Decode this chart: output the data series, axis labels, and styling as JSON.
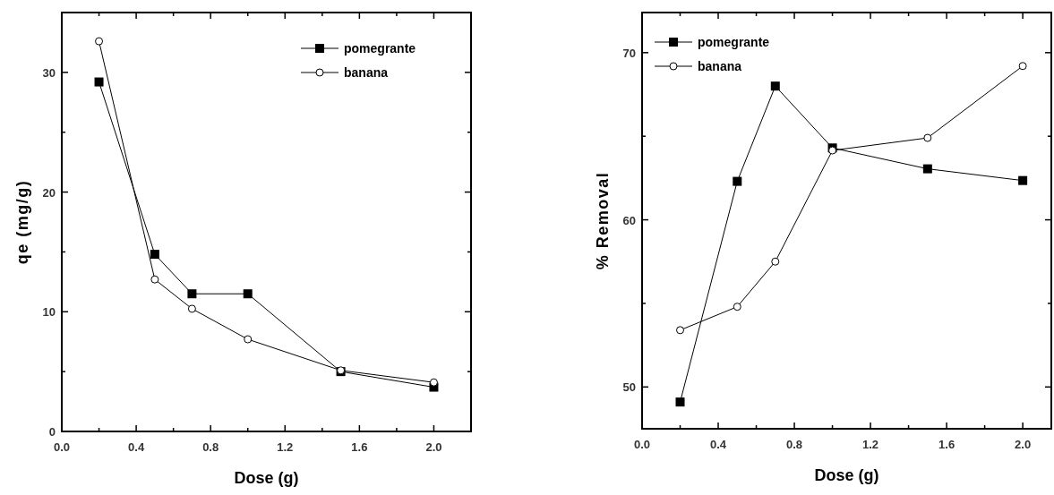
{
  "chart_data": [
    {
      "type": "line",
      "xlabel": "Dose (g)",
      "ylabel": "qe (mg/g)",
      "x": [
        0.2,
        0.5,
        0.7,
        1.0,
        1.5,
        2.0
      ],
      "xlim": [
        0,
        2.2
      ],
      "ylim": [
        0,
        35
      ],
      "xticks": [
        {
          "value": 0,
          "label": "0.0"
        },
        {
          "value": 0.2,
          "label": null
        },
        0.4,
        {
          "value": 0.6,
          "label": null
        },
        0.8,
        {
          "value": 1.0,
          "label": null
        },
        1.2,
        {
          "value": 1.4,
          "label": null
        },
        1.6,
        {
          "value": 1.8,
          "label": null
        },
        {
          "value": 2,
          "label": "2.0"
        }
      ],
      "yticks": [
        0,
        {
          "value": 5,
          "label": null
        },
        10,
        {
          "value": 15,
          "label": null
        },
        20,
        {
          "value": 25,
          "label": null
        },
        30
      ],
      "legend": "top right",
      "series": [
        {
          "name": "pomegrante",
          "color": "#000000",
          "marker": "square",
          "values": [
            29.2,
            14.8,
            11.5,
            11.5,
            5.0,
            3.7
          ]
        },
        {
          "name": "banana",
          "color": "#000000",
          "marker": "circle",
          "values": [
            32.6,
            12.7,
            10.25,
            7.7,
            5.1,
            4.1
          ]
        }
      ]
    },
    {
      "type": "line",
      "xlabel": "Dose (g)",
      "ylabel": "% Removal",
      "x": [
        0.2,
        0.5,
        0.7,
        1.0,
        1.5,
        2.0
      ],
      "xlim": [
        0,
        2.15
      ],
      "ylim": [
        47.5,
        72.4
      ],
      "xticks": [
        {
          "value": 0,
          "label": "0.0"
        },
        {
          "value": 0.2,
          "label": null
        },
        0.4,
        {
          "value": 0.6,
          "label": null
        },
        0.8,
        {
          "value": 1.0,
          "label": null
        },
        1.2,
        {
          "value": 1.4,
          "label": null
        },
        1.6,
        {
          "value": 1.8,
          "label": null
        },
        {
          "value": 2,
          "label": "2.0"
        }
      ],
      "yticks": [
        50,
        {
          "value": 55,
          "label": null
        },
        60,
        {
          "value": 65,
          "label": null
        },
        70
      ],
      "legend": "top left",
      "series": [
        {
          "name": "pomegrante",
          "color": "#000000",
          "marker": "square",
          "values": [
            49.1,
            62.3,
            68.0,
            64.3,
            63.05,
            62.35
          ]
        },
        {
          "name": "banana",
          "color": "#000000",
          "marker": "circle",
          "values": [
            53.4,
            54.8,
            57.5,
            64.15,
            64.9,
            69.2
          ]
        }
      ]
    }
  ]
}
